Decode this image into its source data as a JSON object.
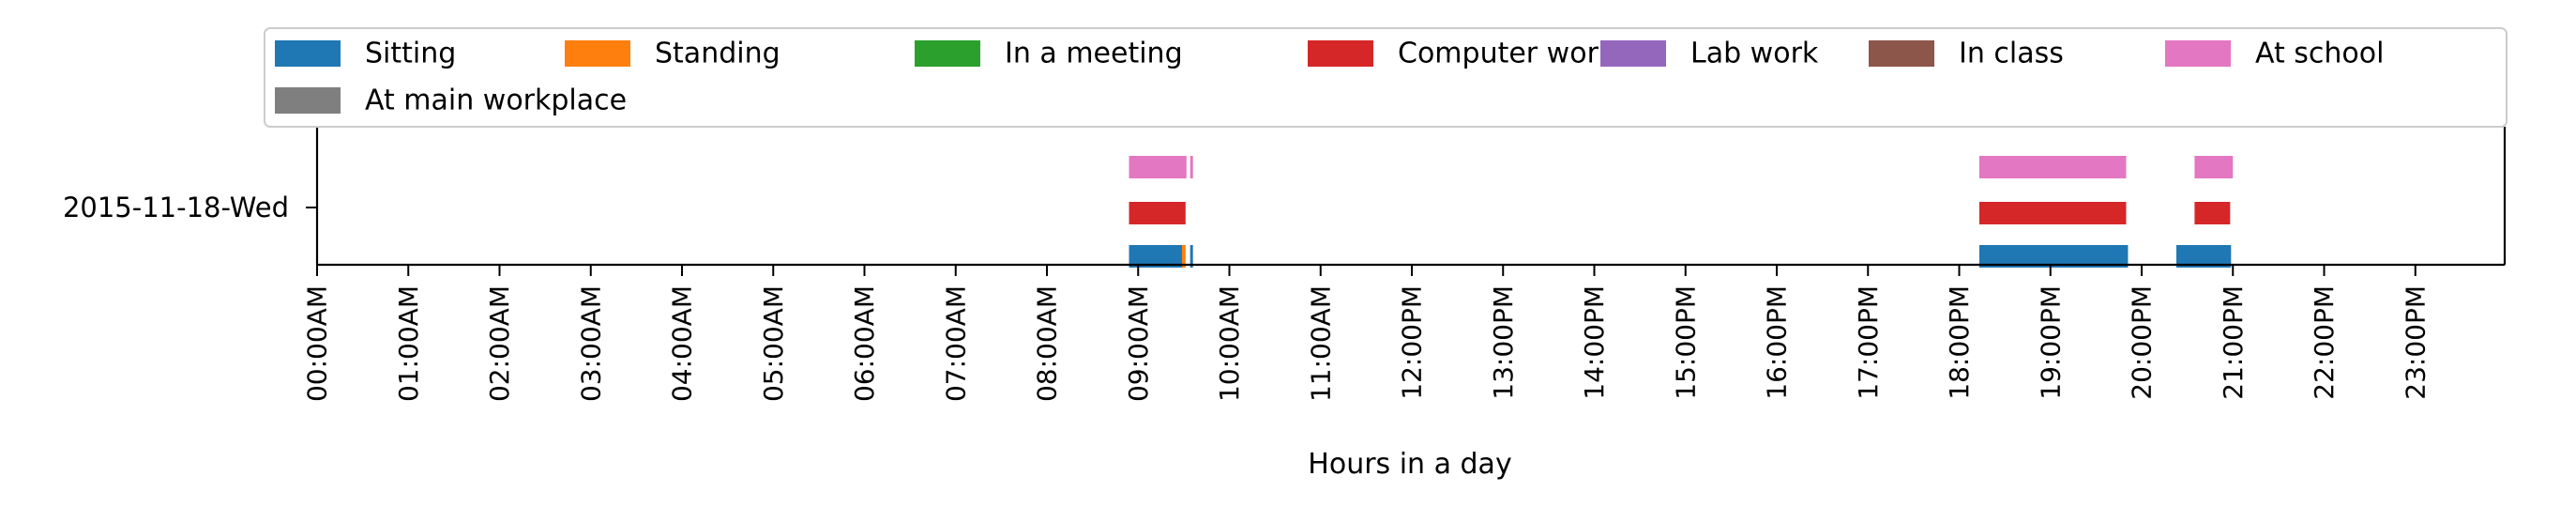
{
  "chart_data": {
    "type": "bar",
    "orientation": "horizontal-timeline",
    "xlabel": "Hours in a day",
    "ylabel": "",
    "xlim": [
      0,
      24
    ],
    "x_ticks": [
      {
        "value": 0,
        "label": "00:00AM"
      },
      {
        "value": 1,
        "label": "01:00AM"
      },
      {
        "value": 2,
        "label": "02:00AM"
      },
      {
        "value": 3,
        "label": "03:00AM"
      },
      {
        "value": 4,
        "label": "04:00AM"
      },
      {
        "value": 5,
        "label": "05:00AM"
      },
      {
        "value": 6,
        "label": "06:00AM"
      },
      {
        "value": 7,
        "label": "07:00AM"
      },
      {
        "value": 8,
        "label": "08:00AM"
      },
      {
        "value": 9,
        "label": "09:00AM"
      },
      {
        "value": 10,
        "label": "10:00AM"
      },
      {
        "value": 11,
        "label": "11:00AM"
      },
      {
        "value": 12,
        "label": "12:00PM"
      },
      {
        "value": 13,
        "label": "13:00PM"
      },
      {
        "value": 14,
        "label": "14:00PM"
      },
      {
        "value": 15,
        "label": "15:00PM"
      },
      {
        "value": 16,
        "label": "16:00PM"
      },
      {
        "value": 17,
        "label": "17:00PM"
      },
      {
        "value": 18,
        "label": "18:00PM"
      },
      {
        "value": 19,
        "label": "19:00PM"
      },
      {
        "value": 20,
        "label": "20:00PM"
      },
      {
        "value": 21,
        "label": "21:00PM"
      },
      {
        "value": 22,
        "label": "22:00PM"
      },
      {
        "value": 23,
        "label": "23:00PM"
      }
    ],
    "days": [
      "2015-11-18-Wed"
    ],
    "legend_position": "top",
    "grid": false,
    "series": [
      {
        "name": "Sitting",
        "color": "#1f77b4",
        "lane": 0,
        "intervals": [
          [
            8.9,
            9.5
          ],
          [
            9.57,
            9.6
          ],
          [
            18.22,
            19.85
          ],
          [
            20.38,
            20.98
          ]
        ]
      },
      {
        "name": "Standing",
        "color": "#ff7f0e",
        "lane": 0,
        "intervals": [
          [
            9.48,
            9.52
          ]
        ]
      },
      {
        "name": "In a meeting",
        "color": "#2ca02c",
        "lane": 1,
        "intervals": []
      },
      {
        "name": "Computer work",
        "color": "#d62728",
        "lane": 1,
        "intervals": [
          [
            8.9,
            9.52
          ],
          [
            18.22,
            19.83
          ],
          [
            20.58,
            20.97
          ]
        ]
      },
      {
        "name": "Lab work",
        "color": "#9467bd",
        "lane": 1,
        "intervals": []
      },
      {
        "name": "In class",
        "color": "#8c564b",
        "lane": 1,
        "intervals": []
      },
      {
        "name": "At school",
        "color": "#e377c2",
        "lane": 2,
        "intervals": [
          [
            8.9,
            9.53
          ],
          [
            9.57,
            9.6
          ],
          [
            18.22,
            19.83
          ],
          [
            20.58,
            21.0
          ]
        ]
      },
      {
        "name": "At main workplace",
        "color": "#7f7f7f",
        "lane": 2,
        "intervals": []
      }
    ]
  }
}
